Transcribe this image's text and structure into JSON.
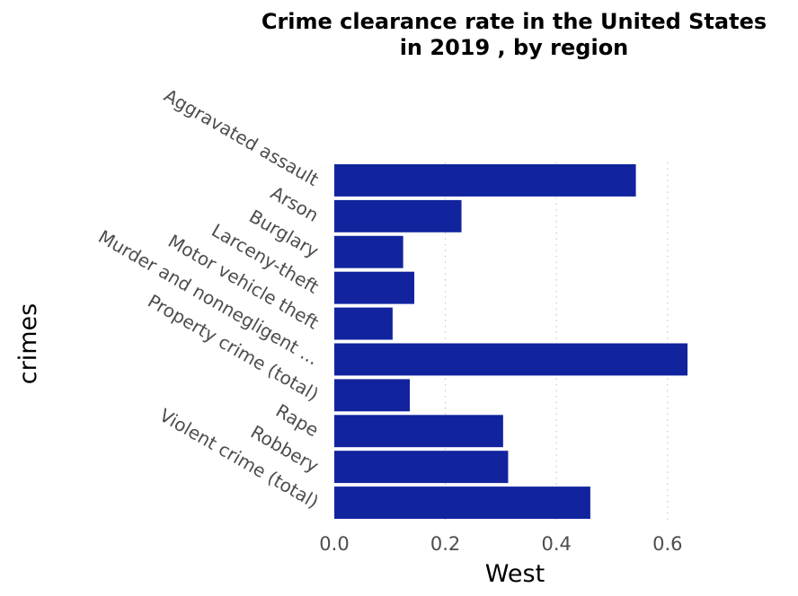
{
  "chart_data": {
    "type": "bar",
    "orientation": "horizontal",
    "title_lines": [
      "Crime clearance rate in the United States",
      "in 2019 , by region"
    ],
    "xlabel": "West",
    "ylabel": "crimes",
    "xlim": [
      0,
      0.66
    ],
    "x_ticks": [
      0.0,
      0.2,
      0.4,
      0.6
    ],
    "x_tick_labels": [
      "0.0",
      "0.2",
      "0.4",
      "0.6"
    ],
    "grid": "vertical dotted",
    "bar_color": "#12239e",
    "categories": [
      "Aggravated assault",
      "Arson",
      "Burglary",
      "Larceny-theft",
      "Motor vehicle theft",
      "Murder and nonnegligent ...",
      "Property crime  (total)",
      "Rape",
      "Robbery",
      "Violent crime  (total)"
    ],
    "values": [
      0.543,
      0.229,
      0.124,
      0.144,
      0.105,
      0.636,
      0.136,
      0.304,
      0.313,
      0.461
    ]
  }
}
